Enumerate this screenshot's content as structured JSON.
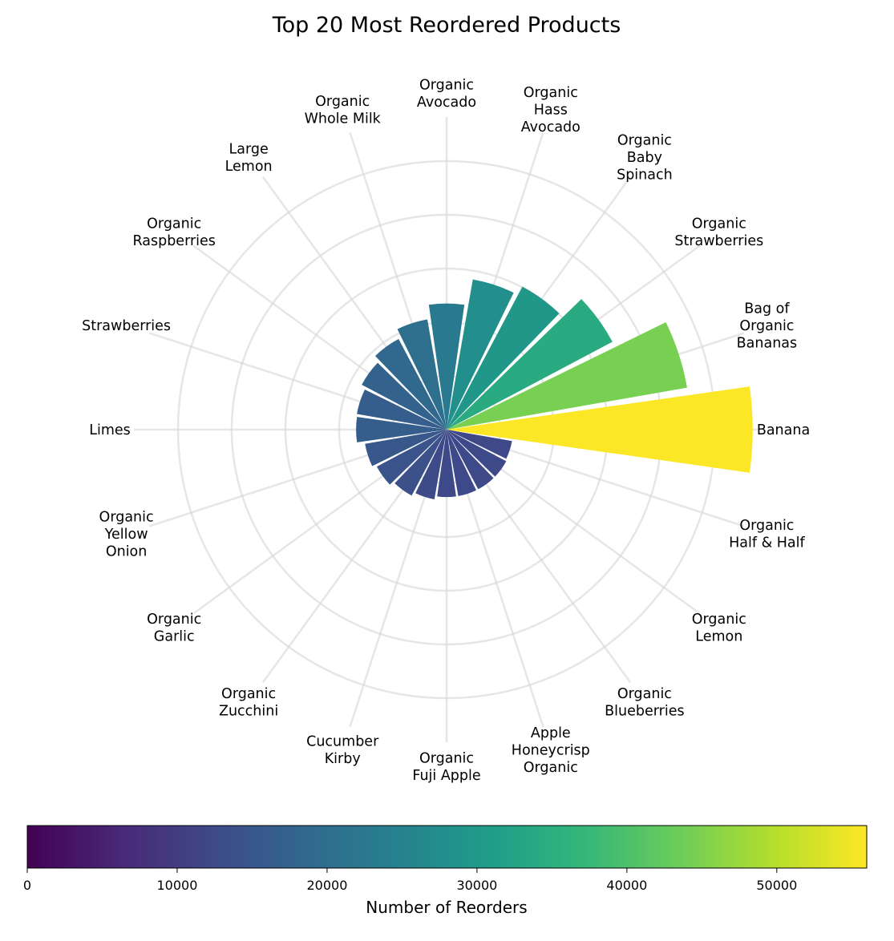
{
  "chart_data": {
    "type": "bar",
    "subtype": "radial",
    "title": "Top 20 Most Reordered Products",
    "categories": [
      "Banana",
      "Bag of\nOrganic\nBananas",
      "Organic\nStrawberries",
      "Organic\nBaby\nSpinach",
      "Organic\nHass\nAvocado",
      "Organic\nAvocado",
      "Organic\nWhole Milk",
      "Large\nLemon",
      "Organic\nRaspberries",
      "Strawberries",
      "Limes",
      "Organic\nYellow\nOnion",
      "Organic\nGarlic",
      "Organic\nZucchini",
      "Cucumber\nKirby",
      "Organic\nFuji Apple",
      "Apple\nHoneycrisp\nOrganic",
      "Organic\nBlueberries",
      "Organic\nLemon",
      "Organic\nHalf & Half"
    ],
    "values": [
      55800,
      44500,
      34200,
      29500,
      27800,
      23000,
      20400,
      18700,
      17500,
      16600,
      16500,
      15100,
      14400,
      13600,
      12900,
      12300,
      12300,
      12300,
      12300,
      12100
    ],
    "rlim": [
      0,
      57000
    ],
    "grid": true,
    "colormap": "viridis",
    "colorbar": {
      "label": "Number of Reorders",
      "min": 0,
      "max": 56000,
      "ticks": [
        0,
        10000,
        20000,
        30000,
        40000,
        50000
      ]
    }
  }
}
